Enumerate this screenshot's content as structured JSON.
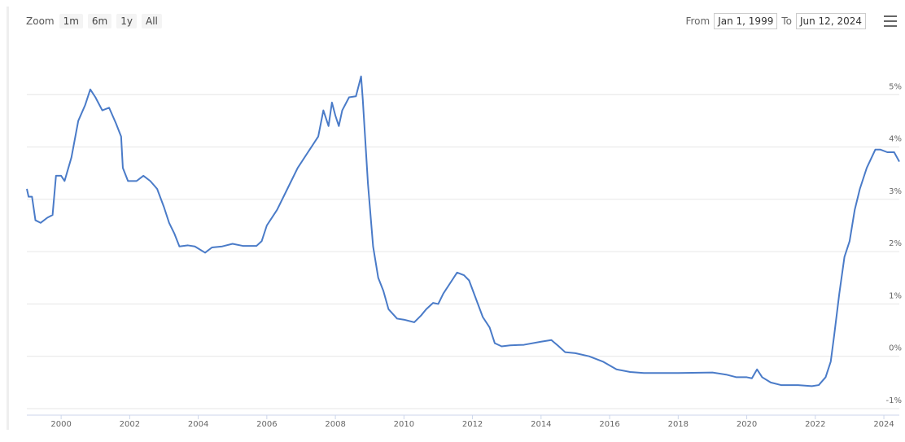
{
  "toolbar": {
    "zoom_label": "Zoom",
    "buttons": [
      "1m",
      "6m",
      "1y",
      "All"
    ],
    "from_label": "From",
    "from_value": "Jan 1, 1999",
    "to_label": "To",
    "to_value": "Jun 12, 2024"
  },
  "chart_data": {
    "type": "line",
    "x": [
      1999.0,
      1999.05,
      1999.15,
      1999.25,
      1999.4,
      1999.6,
      1999.75,
      1999.85,
      2000.0,
      2000.1,
      2000.3,
      2000.5,
      2000.7,
      2000.85,
      2001.0,
      2001.2,
      2001.4,
      2001.6,
      2001.75,
      2001.8,
      2001.95,
      2002.2,
      2002.4,
      2002.6,
      2002.8,
      2003.0,
      2003.15,
      2003.3,
      2003.45,
      2003.7,
      2003.9,
      2004.2,
      2004.4,
      2004.7,
      2005.0,
      2005.3,
      2005.7,
      2005.85,
      2006.0,
      2006.3,
      2006.6,
      2006.9,
      2007.2,
      2007.5,
      2007.65,
      2007.8,
      2007.9,
      2008.0,
      2008.1,
      2008.2,
      2008.4,
      2008.6,
      2008.75,
      2008.8,
      2008.95,
      2009.1,
      2009.25,
      2009.4,
      2009.55,
      2009.8,
      2010.0,
      2010.3,
      2010.5,
      2010.65,
      2010.85,
      2011.0,
      2011.15,
      2011.4,
      2011.55,
      2011.75,
      2011.9,
      2012.1,
      2012.3,
      2012.5,
      2012.65,
      2012.85,
      2013.1,
      2013.5,
      2014.0,
      2014.3,
      2014.5,
      2014.7,
      2015.0,
      2015.4,
      2015.8,
      2016.2,
      2016.6,
      2017.0,
      2018.0,
      2019.0,
      2019.4,
      2019.7,
      2020.0,
      2020.15,
      2020.3,
      2020.45,
      2020.7,
      2021.0,
      2021.5,
      2021.9,
      2022.1,
      2022.3,
      2022.45,
      2022.55,
      2022.7,
      2022.85,
      2023.0,
      2023.15,
      2023.3,
      2023.5,
      2023.75,
      2023.9,
      2024.1,
      2024.3,
      2024.45
    ],
    "series": [
      {
        "color": "#4a7bc8",
        "values": [
          3.2,
          3.05,
          3.05,
          2.6,
          2.55,
          2.65,
          2.7,
          3.45,
          3.45,
          3.35,
          3.8,
          4.5,
          4.8,
          5.1,
          4.95,
          4.7,
          4.75,
          4.45,
          4.2,
          3.6,
          3.35,
          3.35,
          3.45,
          3.35,
          3.2,
          2.85,
          2.55,
          2.35,
          2.1,
          2.12,
          2.1,
          1.98,
          2.08,
          2.1,
          2.15,
          2.11,
          2.11,
          2.2,
          2.5,
          2.8,
          3.2,
          3.6,
          3.9,
          4.2,
          4.7,
          4.4,
          4.85,
          4.6,
          4.4,
          4.7,
          4.95,
          4.97,
          5.35,
          4.9,
          3.3,
          2.1,
          1.5,
          1.25,
          0.9,
          0.72,
          0.7,
          0.65,
          0.78,
          0.9,
          1.02,
          1.0,
          1.2,
          1.45,
          1.6,
          1.55,
          1.45,
          1.1,
          0.75,
          0.55,
          0.25,
          0.19,
          0.21,
          0.22,
          0.28,
          0.31,
          0.2,
          0.08,
          0.06,
          0.0,
          -0.1,
          -0.25,
          -0.3,
          -0.32,
          -0.32,
          -0.31,
          -0.35,
          -0.4,
          -0.4,
          -0.42,
          -0.25,
          -0.4,
          -0.5,
          -0.55,
          -0.55,
          -0.57,
          -0.55,
          -0.4,
          -0.1,
          0.4,
          1.2,
          1.9,
          2.2,
          2.8,
          3.2,
          3.6,
          3.95,
          3.95,
          3.9,
          3.9,
          3.72
        ]
      }
    ],
    "xlim": [
      1999,
      2024.45
    ],
    "xticks": [
      2000,
      2002,
      2004,
      2006,
      2008,
      2010,
      2012,
      2014,
      2016,
      2018,
      2020,
      2022,
      2024
    ],
    "ylim": [
      -1,
      6
    ],
    "yticks": [
      {
        "value": -1,
        "label": "-1%"
      },
      {
        "value": 0,
        "label": "0%"
      },
      {
        "value": 1,
        "label": "1%"
      },
      {
        "value": 2,
        "label": "2%"
      },
      {
        "value": 3,
        "label": "3%"
      },
      {
        "value": 4,
        "label": "4%"
      },
      {
        "value": 5,
        "label": "5%"
      }
    ],
    "grid": true
  }
}
